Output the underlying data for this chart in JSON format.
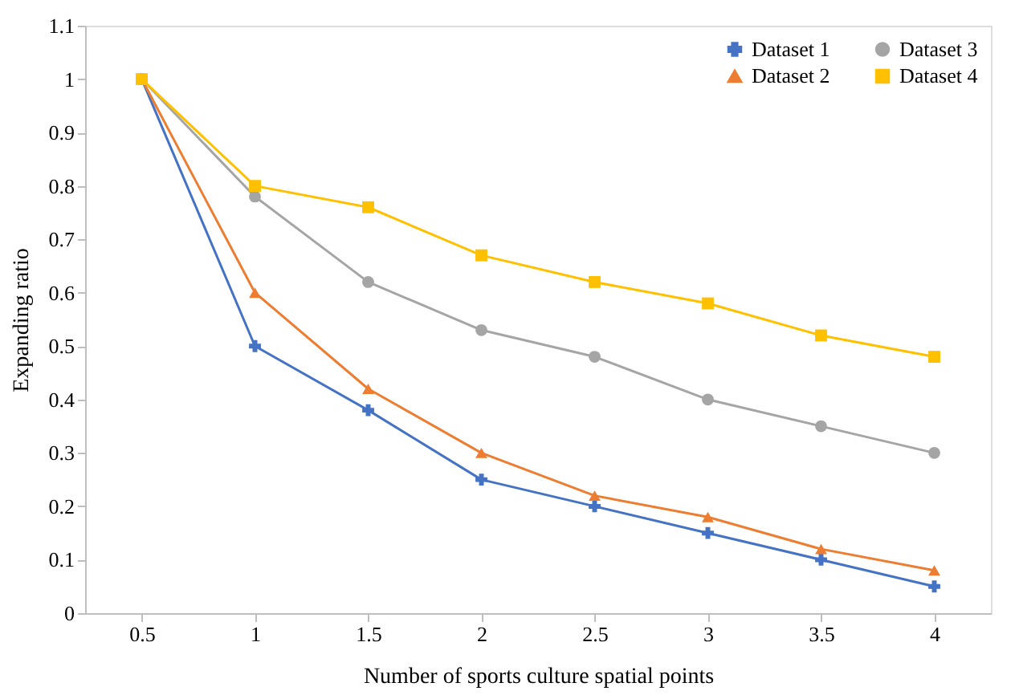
{
  "chart_data": {
    "type": "line",
    "xlabel": "Number of sports culture spatial points",
    "ylabel": "Expanding ratio",
    "categories": [
      "0.5",
      "1",
      "1.5",
      "2",
      "2.5",
      "3",
      "3.5",
      "4"
    ],
    "ylim": [
      0,
      1.1
    ],
    "yticks": [
      0,
      0.1,
      0.2,
      0.3,
      0.4,
      0.5,
      0.6,
      0.7,
      0.8,
      0.9,
      1,
      1.1
    ],
    "grid": false,
    "legend": "top right",
    "series": [
      {
        "name": "Dataset 1",
        "color": "#4472c4",
        "marker": "cross",
        "values": [
          1,
          0.5,
          0.38,
          0.25,
          0.2,
          0.15,
          0.1,
          0.05
        ]
      },
      {
        "name": "Dataset 2",
        "color": "#ed7d31",
        "marker": "triangle",
        "values": [
          1,
          0.6,
          0.42,
          0.3,
          0.22,
          0.18,
          0.12,
          0.08
        ]
      },
      {
        "name": "Dataset 3",
        "color": "#a5a5a5",
        "marker": "circle",
        "values": [
          1,
          0.78,
          0.62,
          0.53,
          0.48,
          0.4,
          0.35,
          0.3
        ]
      },
      {
        "name": "Dataset 4",
        "color": "#ffc000",
        "marker": "square",
        "values": [
          1,
          0.8,
          0.76,
          0.67,
          0.62,
          0.58,
          0.52,
          0.48
        ]
      }
    ]
  }
}
